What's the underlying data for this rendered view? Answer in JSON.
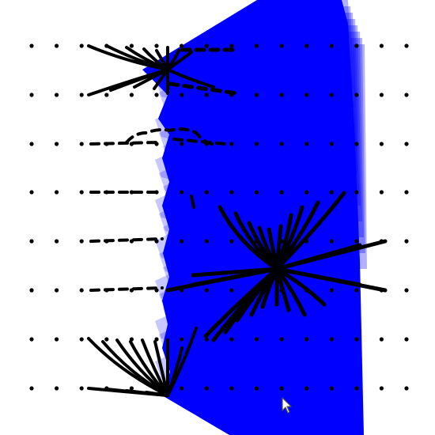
{
  "canvas": {
    "background": "#ffffff",
    "dot_rows": 8,
    "dot_columns": 16,
    "dot_color": "#000000"
  },
  "shapes": {
    "fill_color": "#0000ff",
    "fan_color": "#000000",
    "fan_count": 3
  },
  "cursor": {
    "icon": "mouse-pointer-icon",
    "color": "#ffffff",
    "outline": "#555555"
  }
}
